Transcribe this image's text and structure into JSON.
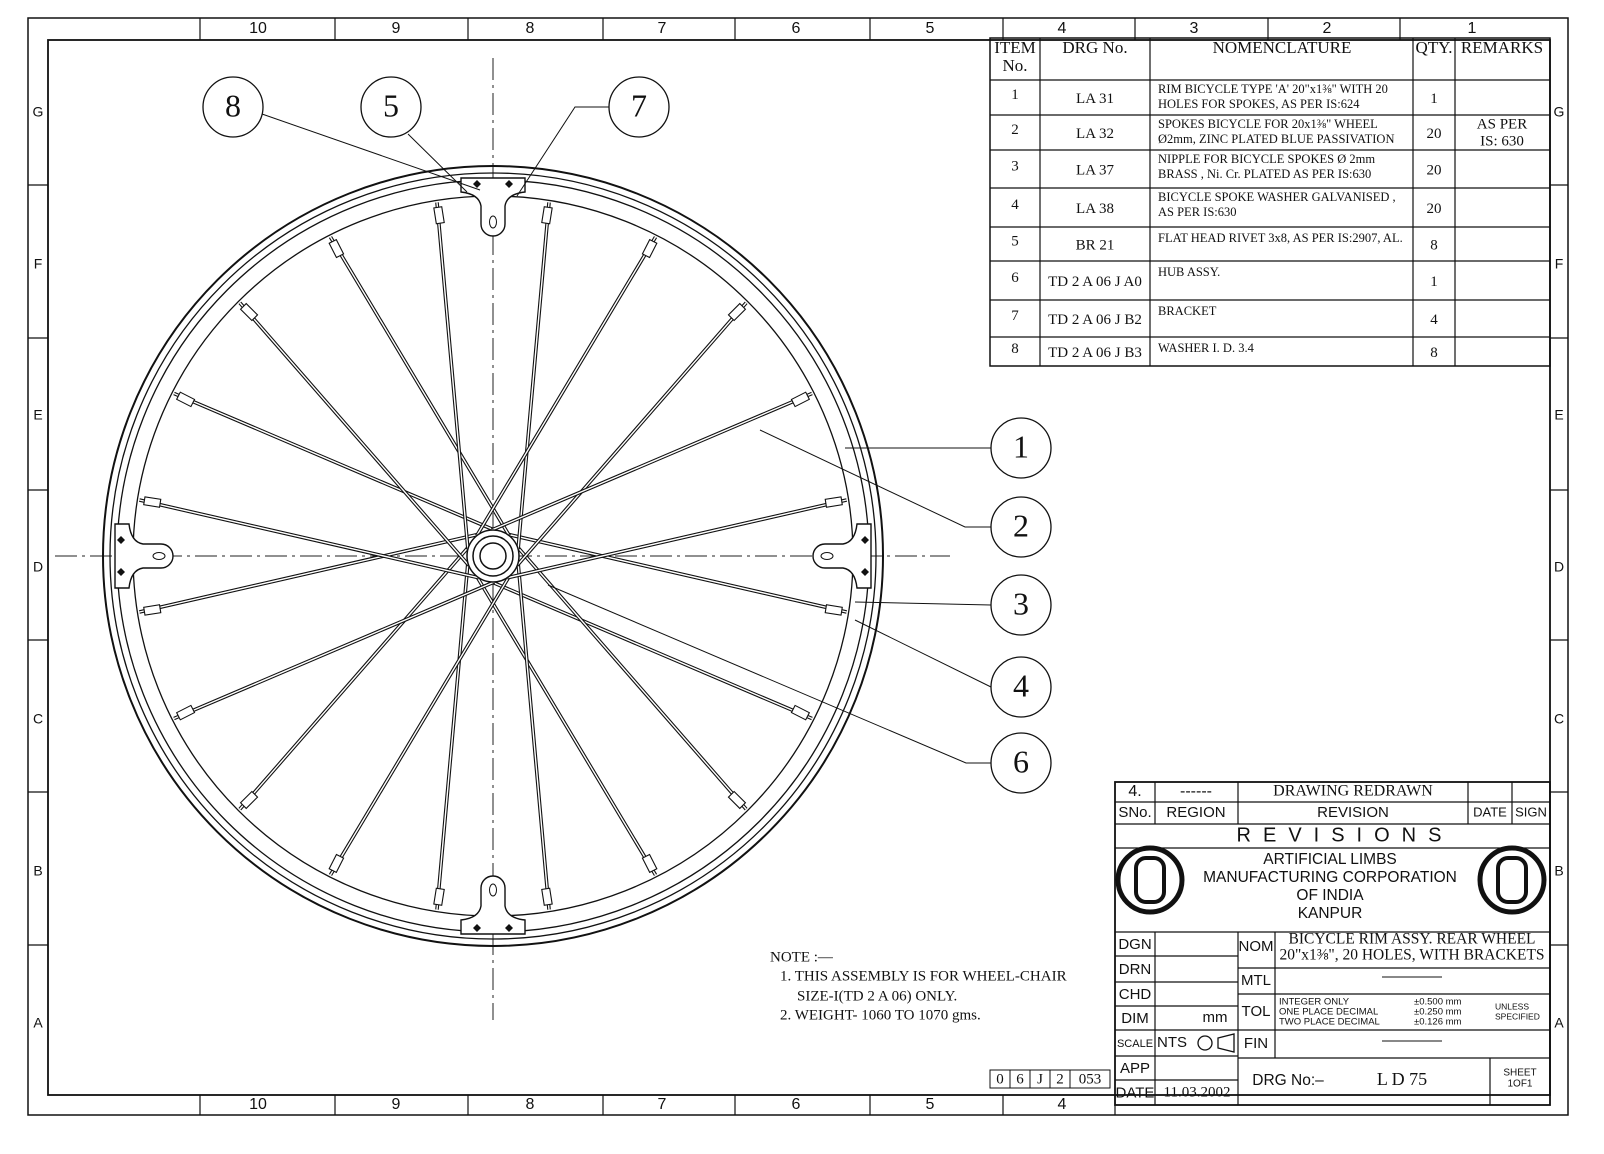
{
  "border": {
    "columns_top": [
      "10",
      "9",
      "8",
      "7",
      "6",
      "5",
      "4",
      "3",
      "2",
      "1"
    ],
    "columns_bottom": [
      "10",
      "9",
      "8",
      "7",
      "6",
      "5",
      "4"
    ],
    "rows": [
      "G",
      "F",
      "E",
      "D",
      "C",
      "B",
      "A"
    ]
  },
  "balloons": [
    "8",
    "5",
    "7",
    "1",
    "2",
    "3",
    "4",
    "6"
  ],
  "bom": {
    "headers": [
      [
        "ITEM",
        "No."
      ],
      [
        "DRG No."
      ],
      [
        "NOMENCLATURE"
      ],
      [
        "QTY."
      ],
      [
        "REMARKS"
      ]
    ],
    "rows": [
      {
        "item": "1",
        "drg_no": "LA 31",
        "nomenclature": [
          "RIM BICYCLE TYPE 'A' 20\"x1⅜\" WITH 20",
          "HOLES FOR SPOKES, AS PER IS:624"
        ],
        "qty": 1
      },
      {
        "item": "2",
        "drg_no": "LA 32",
        "nomenclature": [
          "SPOKES BICYCLE FOR 20x1⅜\" WHEEL",
          "Ø2mm, ZINC PLATED BLUE PASSIVATION"
        ],
        "qty": 20,
        "remarks": [
          "AS PER",
          "IS: 630"
        ]
      },
      {
        "item": "3",
        "drg_no": "LA 37",
        "nomenclature": [
          "NIPPLE FOR BICYCLE SPOKES Ø 2mm",
          "BRASS , Ni. Cr. PLATED AS PER IS:630"
        ],
        "qty": 20
      },
      {
        "item": "4",
        "drg_no": "LA 38",
        "nomenclature": [
          "BICYCLE SPOKE WASHER GALVANISED ,",
          "AS PER IS:630"
        ],
        "qty": 20
      },
      {
        "item": "5",
        "drg_no": "BR 21",
        "nomenclature": [
          "FLAT HEAD RIVET 3x8, AS PER IS:2907, AL."
        ],
        "qty": 8
      },
      {
        "item": "6",
        "drg_no": "TD 2 A 06 J A0",
        "nomenclature": [
          "HUB ASSY."
        ],
        "qty": 1
      },
      {
        "item": "7",
        "drg_no": "TD 2 A 06 J B2",
        "nomenclature": [
          "BRACKET"
        ],
        "qty": 4
      },
      {
        "item": "8",
        "drg_no": "TD 2 A 06 J B3",
        "nomenclature": [
          "WASHER I. D. 3.4"
        ],
        "qty": 8
      }
    ]
  },
  "note": {
    "title": "NOTE :—",
    "lines": [
      "1. THIS ASSEMBLY IS FOR WHEEL-CHAIR",
      "SIZE-I(TD 2 A 06) ONLY.",
      "2.  WEIGHT- 1060 TO 1070 gms."
    ]
  },
  "drawing_ref": [
    "0",
    "6",
    "J",
    "2",
    "053"
  ],
  "revisions": {
    "row": [
      "4.",
      "------",
      "DRAWING REDRAWN"
    ],
    "headers": [
      "SNo.",
      "REGION",
      "REVISION",
      "DATE",
      "SIGN"
    ],
    "title": "REVISIONS"
  },
  "company": [
    "ARTIFICIAL  LIMBS",
    "MANUFACTURING  CORPORATION",
    "OF  INDIA",
    "KANPUR"
  ],
  "title_block": {
    "labels": [
      "DGN",
      "DRN",
      "CHD",
      "DIM",
      "SCALE",
      "APP",
      "DATE"
    ],
    "dim": "mm",
    "scale": "NTS",
    "date": "11.03.2002",
    "nom_label": "NOM",
    "nomenclature": [
      "BICYCLE RIM ASSY. REAR WHEEL",
      "20\"x1⅜\", 20 HOLES, WITH BRACKETS"
    ],
    "mtl_label": "MTL",
    "mtl": "————",
    "tol_label": "TOL",
    "tolerances": [
      {
        "label": "INTEGER  ONLY",
        "value": "±0.500  mm"
      },
      {
        "label": "ONE  PLACE  DECIMAL",
        "value": "±0.250  mm"
      },
      {
        "label": "TWO  PLACE  DECIMAL",
        "value": "±0.126  mm"
      }
    ],
    "tol_note": [
      "UNLESS",
      "SPECIFIED"
    ],
    "fin_label": "FIN",
    "fin": "————",
    "drg_no_label": "DRG No:–",
    "drg_no": "L D  75",
    "sheet": [
      "SHEET",
      "1OF1"
    ]
  }
}
